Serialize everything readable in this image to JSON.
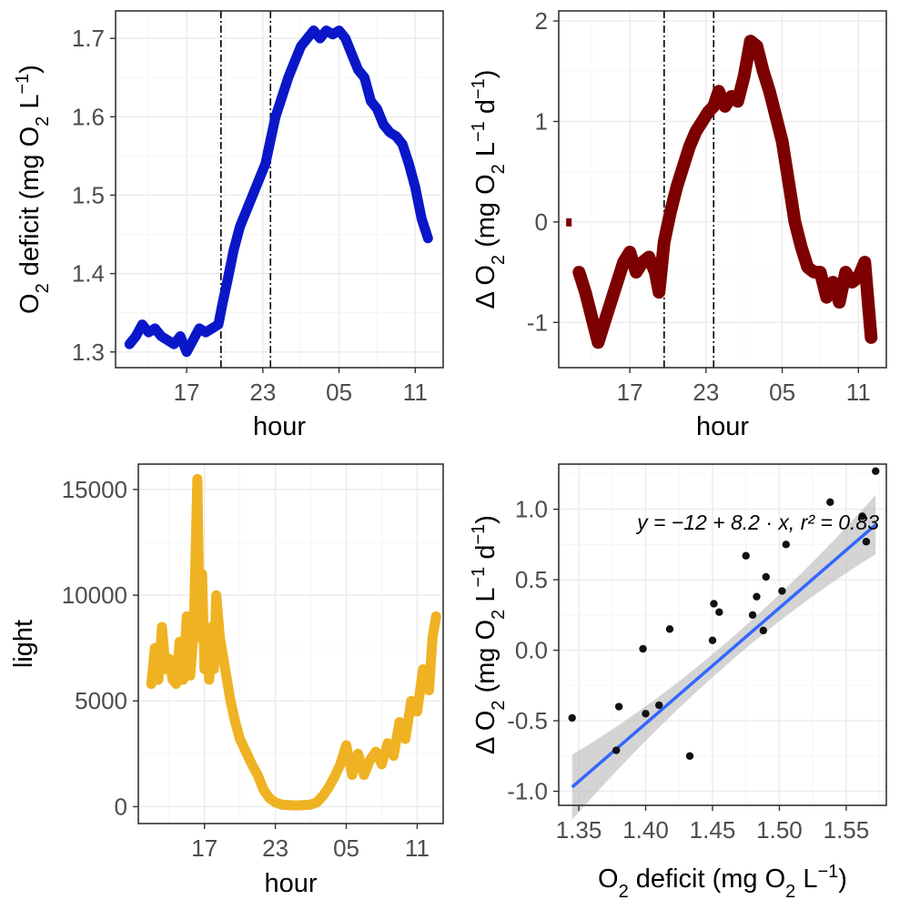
{
  "colors": {
    "deficit": "#0a17c9",
    "delta": "#7d0000",
    "light": "#efb223",
    "fit": "#3366ff",
    "ribbon": "#b8b8b8",
    "points": "#111111",
    "frame": "#333333",
    "grid": "#ebebeb"
  },
  "chart_data": [
    {
      "id": "deficit_panel",
      "type": "line",
      "xlabel": "hour",
      "ylabel": {
        "main": "O",
        "sub": "2",
        "rest": " deficit (mg O",
        "sub2": "2",
        "unit": " L",
        "sup": "−1",
        "close": ")"
      },
      "x_ticks": [
        "17",
        "23",
        "05",
        "11"
      ],
      "x_tick_values": [
        17,
        23,
        29,
        35
      ],
      "xlim": [
        11.4,
        37.2
      ],
      "y_ticks": [
        "1.3",
        "1.4",
        "1.5",
        "1.6",
        "1.7"
      ],
      "ylim": [
        1.28,
        1.735
      ],
      "vlines": [
        19.7,
        23.6
      ],
      "series": [
        {
          "x": [
            12.5,
            13,
            13.5,
            14,
            14.5,
            15,
            15.5,
            16,
            16.5,
            17,
            17.5,
            18,
            18.5,
            19,
            19.5,
            19.8,
            20.2,
            20.7,
            21.2,
            21.7,
            22.2,
            22.7,
            23.2,
            23.6,
            24,
            24.5,
            25,
            25.5,
            26,
            26.5,
            27,
            27.5,
            28,
            28.5,
            29,
            29.5,
            30,
            30.5,
            31,
            31.5,
            32,
            32.5,
            33,
            33.5,
            34,
            34.5,
            35,
            35.5,
            36
          ],
          "y": [
            1.31,
            1.32,
            1.335,
            1.325,
            1.33,
            1.32,
            1.315,
            1.31,
            1.32,
            1.3,
            1.315,
            1.33,
            1.325,
            1.33,
            1.335,
            1.36,
            1.39,
            1.43,
            1.46,
            1.48,
            1.5,
            1.52,
            1.54,
            1.57,
            1.6,
            1.625,
            1.65,
            1.67,
            1.69,
            1.7,
            1.71,
            1.7,
            1.71,
            1.705,
            1.71,
            1.7,
            1.68,
            1.66,
            1.65,
            1.62,
            1.61,
            1.59,
            1.58,
            1.575,
            1.565,
            1.54,
            1.51,
            1.47,
            1.445
          ]
        }
      ]
    },
    {
      "id": "delta_panel",
      "type": "line",
      "xlabel": "hour",
      "ylabel": {
        "main": "Δ O",
        "sub": "2",
        "rest": " (mg O",
        "sub2": "2",
        "unit": " L",
        "sup": "−1",
        "mid": " d",
        "sup2": "−1",
        "close": ")"
      },
      "x_ticks": [
        "17",
        "23",
        "05",
        "11"
      ],
      "x_tick_values": [
        17,
        23,
        29,
        35
      ],
      "xlim": [
        11.4,
        37.2
      ],
      "y_ticks": [
        "-1",
        "0",
        "1",
        "2"
      ],
      "y_tick_values": [
        -1,
        0,
        1,
        2
      ],
      "ylim": [
        -1.45,
        2.1
      ],
      "vlines": [
        19.7,
        23.6
      ],
      "outlier": {
        "x": 12.2,
        "y": 0.0
      },
      "series": [
        {
          "x": [
            13,
            13.5,
            14,
            14.5,
            15,
            15.5,
            16,
            16.5,
            17,
            17.5,
            18,
            18.5,
            19,
            19.3,
            19.7,
            20.2,
            20.7,
            21.2,
            21.7,
            22.2,
            22.7,
            23.2,
            23.6,
            24,
            24.5,
            25,
            25.5,
            26,
            26.5,
            27,
            27.5,
            28,
            28.5,
            29,
            29.5,
            30,
            30.5,
            31,
            31.5,
            32,
            32.5,
            33,
            33.5,
            34,
            34.5,
            35,
            35.5,
            36
          ],
          "y": [
            -0.5,
            -0.7,
            -0.95,
            -1.2,
            -1.0,
            -0.8,
            -0.6,
            -0.4,
            -0.3,
            -0.5,
            -0.4,
            -0.35,
            -0.5,
            -0.7,
            -0.2,
            0.1,
            0.35,
            0.55,
            0.75,
            0.9,
            1.0,
            1.1,
            1.15,
            1.3,
            1.15,
            1.25,
            1.2,
            1.45,
            1.8,
            1.75,
            1.5,
            1.3,
            1.05,
            0.8,
            0.4,
            0.0,
            -0.25,
            -0.45,
            -0.5,
            -0.5,
            -0.75,
            -0.6,
            -0.8,
            -0.5,
            -0.6,
            -0.55,
            -0.4,
            -1.15
          ]
        }
      ]
    },
    {
      "id": "light_panel",
      "type": "line",
      "xlabel": "hour",
      "ylabel": {
        "main": "light"
      },
      "x_ticks": [
        "17",
        "23",
        "05",
        "11"
      ],
      "x_tick_values": [
        17,
        23,
        29,
        35
      ],
      "xlim": [
        11.4,
        37.2
      ],
      "y_ticks": [
        "0",
        "5000",
        "10000",
        "15000"
      ],
      "y_tick_values": [
        0,
        5000,
        10000,
        15000
      ],
      "ylim": [
        -800,
        16200
      ],
      "series": [
        {
          "x": [
            12.5,
            12.8,
            13.1,
            13.4,
            13.7,
            14.0,
            14.3,
            14.6,
            14.9,
            15.2,
            15.5,
            15.8,
            16.1,
            16.4,
            16.6,
            16.8,
            17.0,
            17.2,
            17.4,
            17.6,
            17.8,
            18.0,
            18.3,
            18.6,
            18.9,
            19.2,
            19.6,
            20.0,
            20.5,
            21,
            21.5,
            22,
            22.5,
            23,
            23.5,
            24,
            24.5,
            25,
            25.5,
            26,
            26.5,
            27,
            27.5,
            28,
            28.5,
            29,
            29.5,
            30,
            30.5,
            31,
            31.5,
            32,
            32.5,
            33,
            33.5,
            34,
            34.5,
            35,
            35.5,
            36,
            36.3,
            36.6
          ],
          "y": [
            5800,
            7500,
            6000,
            8500,
            6500,
            7000,
            6000,
            5800,
            7800,
            6000,
            9000,
            6200,
            8500,
            15500,
            8000,
            11000,
            6500,
            7500,
            6000,
            8500,
            6500,
            10000,
            8000,
            7000,
            6000,
            5000,
            4000,
            3200,
            2600,
            2000,
            1500,
            800,
            400,
            200,
            100,
            80,
            60,
            60,
            80,
            100,
            200,
            500,
            900,
            1400,
            2000,
            2900,
            1500,
            2500,
            1500,
            2200,
            2600,
            2000,
            3000,
            2400,
            4000,
            3200,
            5000,
            4500,
            6500,
            5500,
            8000,
            9000
          ]
        }
      ]
    },
    {
      "id": "scatter_panel",
      "type": "scatter",
      "xlabel": {
        "main": "O",
        "sub": "2",
        "rest": " deficit (mg O",
        "sub2": "2",
        "unit": " L",
        "sup": "−1",
        "close": ")"
      },
      "ylabel": {
        "main": "Δ O",
        "sub": "2",
        "rest": " (mg O",
        "sub2": "2",
        "unit": " L",
        "sup": "−1",
        "mid": " d",
        "sup2": "−1",
        "close": ")"
      },
      "x_ticks": [
        "1.35",
        "1.40",
        "1.45",
        "1.50",
        "1.55"
      ],
      "x_tick_values": [
        1.35,
        1.4,
        1.45,
        1.5,
        1.55
      ],
      "xlim": [
        1.335,
        1.58
      ],
      "y_ticks": [
        "-1.0",
        "-0.5",
        "0.0",
        "0.5",
        "1.0"
      ],
      "y_tick_values": [
        -1.0,
        -0.5,
        0.0,
        0.5,
        1.0
      ],
      "ylim": [
        -1.1,
        1.32
      ],
      "equation": "y = −12 + 8.2 · x,  r² = 0.83",
      "fit": {
        "intercept": -12,
        "slope": 8.2,
        "r2": 0.83
      },
      "points": {
        "x": [
          1.345,
          1.378,
          1.38,
          1.398,
          1.4,
          1.41,
          1.418,
          1.433,
          1.45,
          1.451,
          1.455,
          1.475,
          1.48,
          1.483,
          1.488,
          1.49,
          1.502,
          1.505,
          1.538,
          1.562,
          1.565,
          1.572
        ],
        "y": [
          -0.48,
          -0.71,
          -0.4,
          0.01,
          -0.45,
          -0.39,
          0.15,
          -0.75,
          0.07,
          0.33,
          0.27,
          0.67,
          0.25,
          0.38,
          0.14,
          0.52,
          0.42,
          0.75,
          1.05,
          0.95,
          0.77,
          1.27
        ]
      }
    }
  ]
}
